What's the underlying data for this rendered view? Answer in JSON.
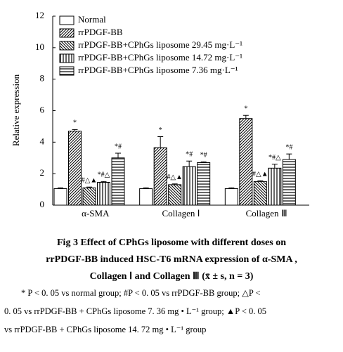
{
  "chart_data": {
    "type": "bar",
    "y_label": "Relative expression",
    "categories": [
      "α-SMA",
      "Collagen Ⅰ",
      "Collagen Ⅲ"
    ],
    "series": [
      {
        "name": "Normal",
        "color": "#000000",
        "hatch": "none",
        "values": [
          1.05,
          1.05,
          1.05
        ],
        "errors": [
          0.05,
          0.05,
          0.05
        ]
      },
      {
        "name": "rrPDGF-BB",
        "color": "#000000",
        "hatch": "diagonal",
        "values": [
          4.7,
          3.65,
          5.5
        ],
        "errors": [
          0.1,
          0.7,
          0.2
        ],
        "annotations": [
          "*",
          "*",
          "*"
        ]
      },
      {
        "name": "rrPDGF-BB+CPhGs liposome 29.45 mg·L⁻¹",
        "color": "#000000",
        "hatch": "backdiagonal",
        "values": [
          1.1,
          1.3,
          1.5
        ],
        "errors": [
          0.05,
          0.05,
          0.05
        ],
        "annotations": [
          "#△▲",
          "#△▲",
          "#△▲"
        ]
      },
      {
        "name": "rrPDGF-BB+CPhGs liposome 14.72 mg·L⁻¹",
        "color": "#000000",
        "hatch": "vertical",
        "values": [
          1.45,
          2.45,
          2.35
        ],
        "errors": [
          0.05,
          0.35,
          0.25
        ],
        "annotations": [
          "*#△",
          "*#",
          "*#△"
        ]
      },
      {
        "name": "rrPDGF-BB+CPhGs liposome 7.36 mg·L⁻¹",
        "color": "#000000",
        "hatch": "horizontal",
        "values": [
          3.0,
          2.7,
          2.9
        ],
        "errors": [
          0.3,
          0.05,
          0.35
        ],
        "annotations": [
          "*#",
          "*#",
          "*#"
        ]
      }
    ],
    "ylim": [
      0,
      12
    ],
    "yticks": [
      0,
      2,
      4,
      6,
      8,
      10,
      12
    ],
    "legend": "upper left",
    "grid": false
  },
  "caption": {
    "lines": [
      "Fig 3   Effect of CPhGs liposome with different doses on",
      "rrPDGF-BB induced HSC-T6 mRNA expression of α-SMA ,",
      "Collagen Ⅰ and Collagen Ⅲ (x̄ ± s, n = 3)"
    ],
    "footnote": [
      "* P < 0. 05 vs normal group; #P < 0. 05 vs rrPDGF-BB group; △P <",
      "0. 05 vs rrPDGF-BB + CPhGs liposome 7. 36 mg • L⁻¹ group; ▲P < 0. 05",
      "vs rrPDGF-BB + CPhGs liposome 14. 72 mg • L⁻¹ group"
    ]
  }
}
